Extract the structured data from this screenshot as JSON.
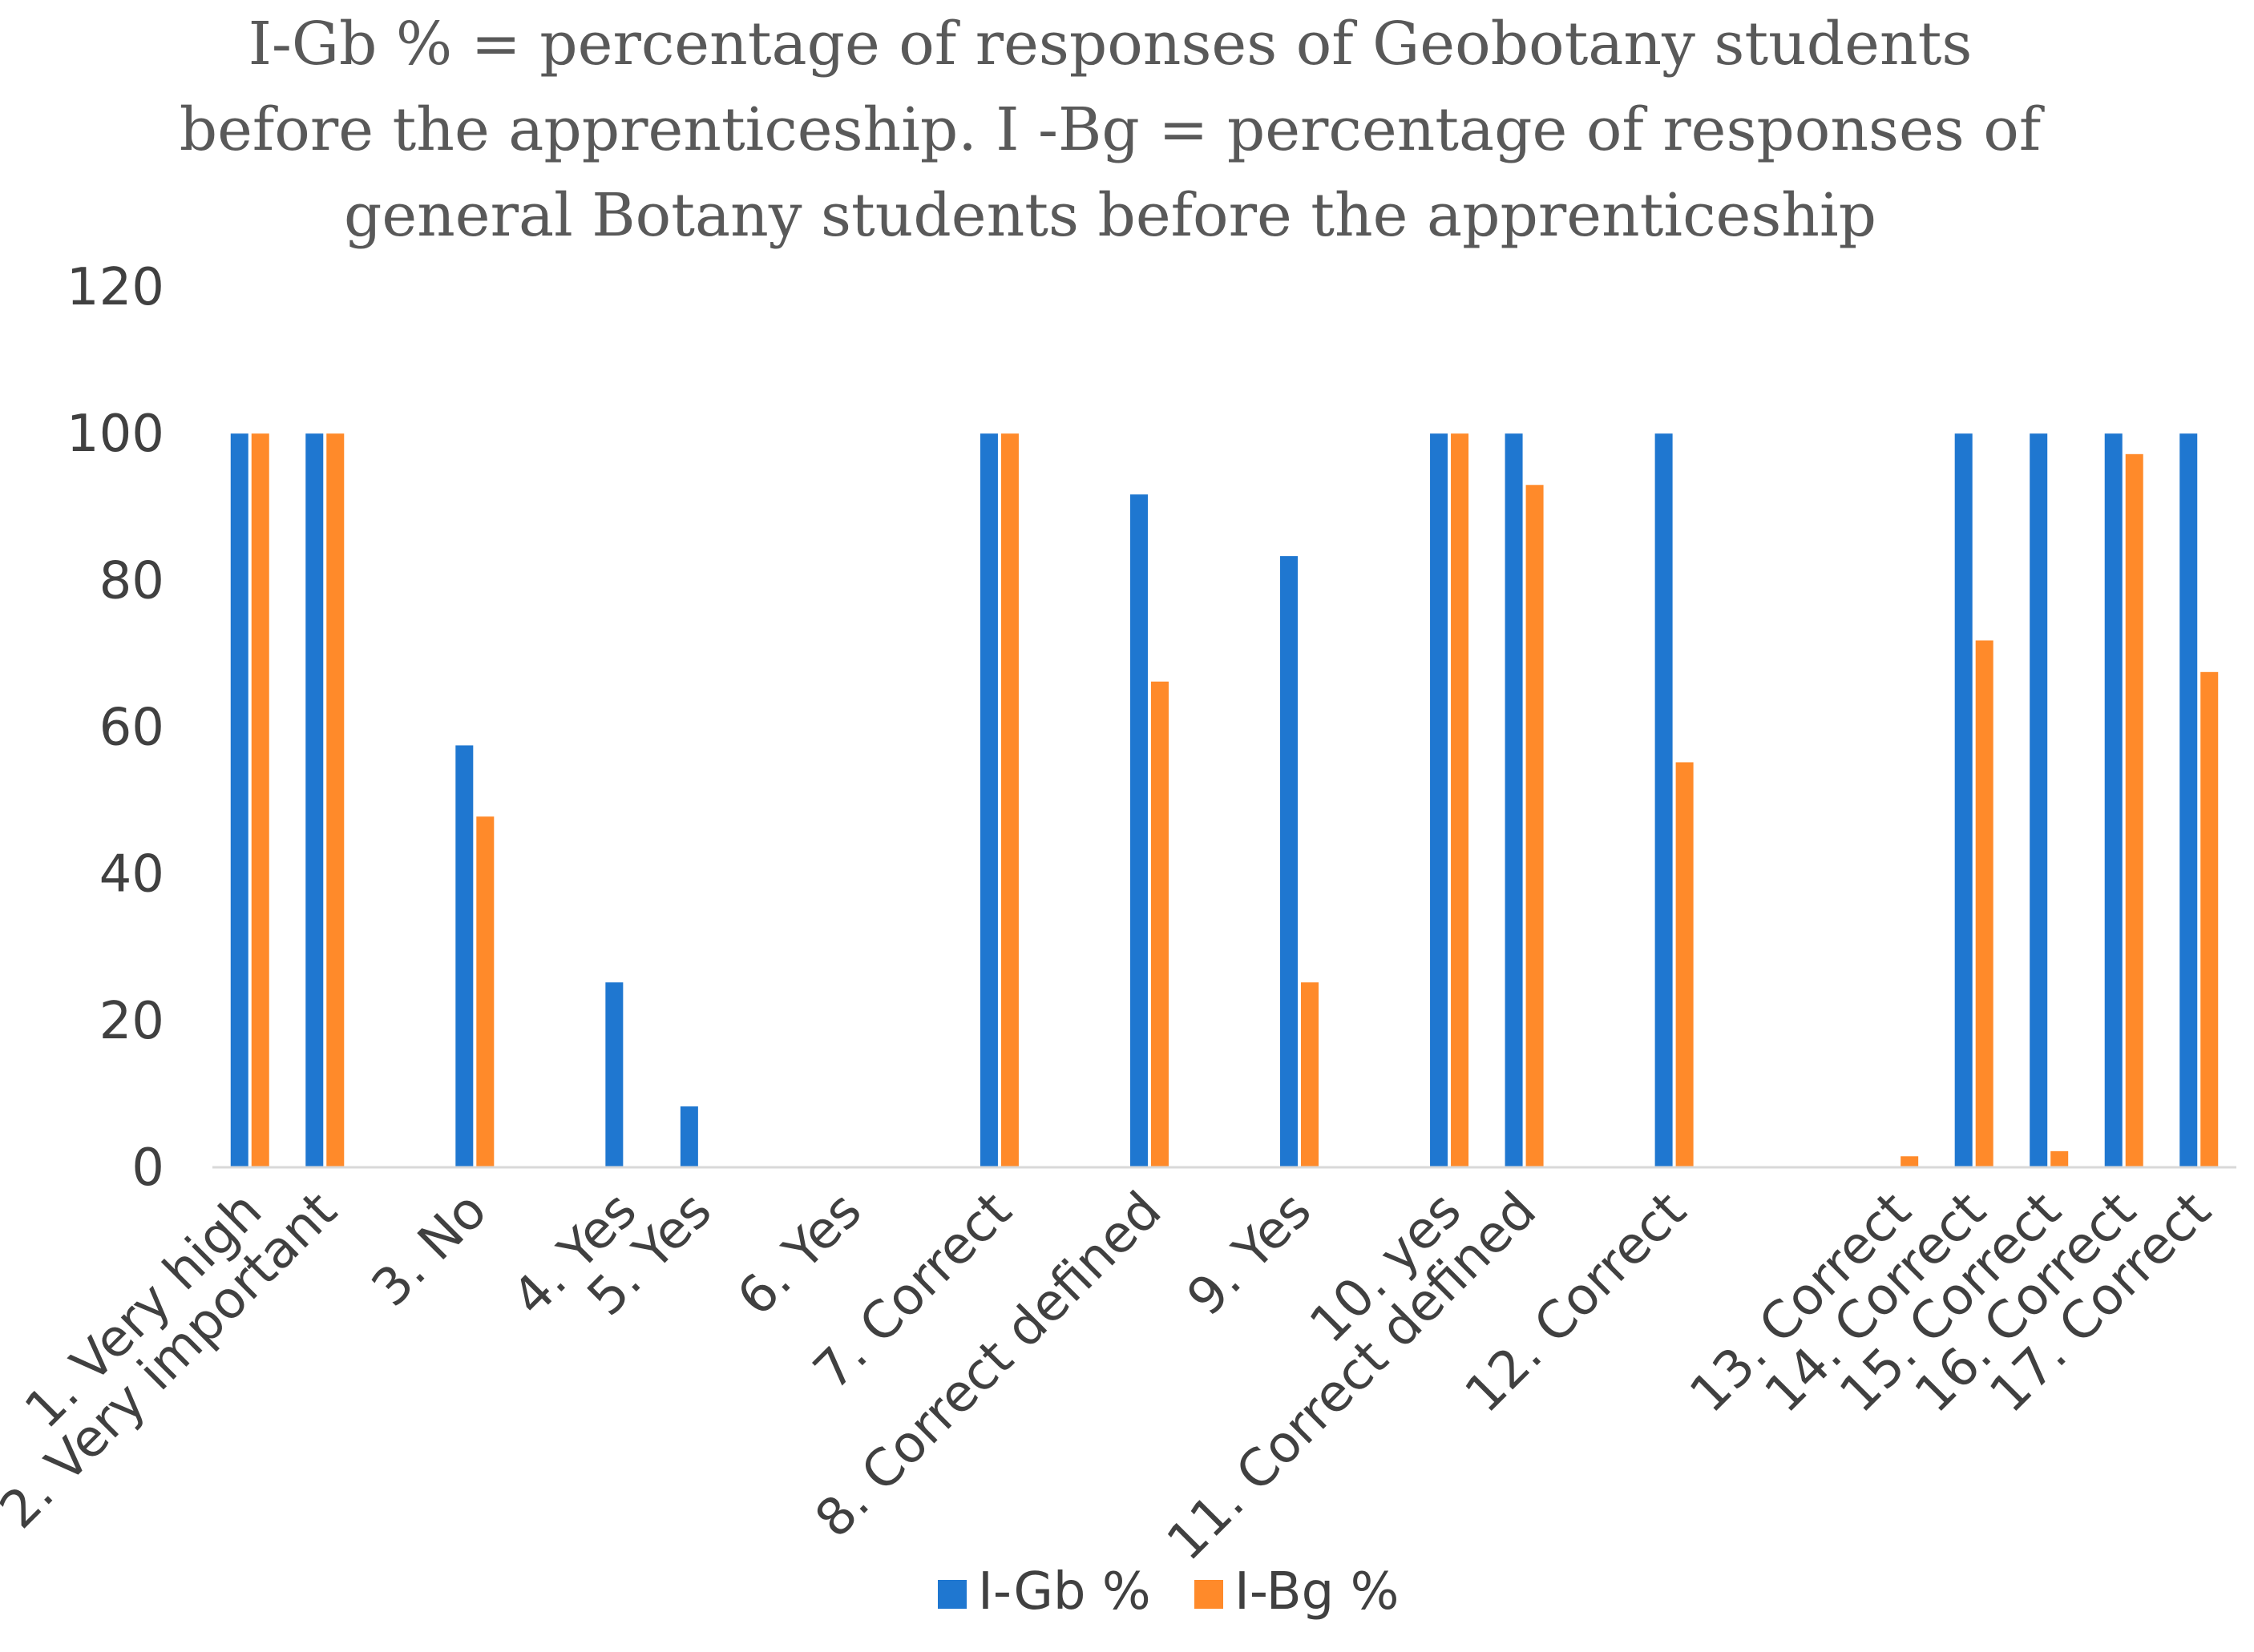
{
  "chart_data": {
    "type": "bar",
    "title_lines": [
      "I-Gb % = percentage of responses of Geobotany students",
      "before the apprenticeship. I -Bg = percentage of responses of",
      "general Botany students before the apprenticeship"
    ],
    "categories": [
      "1. Very high",
      "2. Very important",
      "",
      "3. No",
      "",
      "4. Yes",
      "5. Yes",
      "",
      "6. Yes",
      "",
      "7. Correct",
      "",
      "8. Correct defined",
      "",
      "9. Yes",
      "",
      "10. yes",
      "11. Correct defined",
      "",
      "12. Correct",
      "",
      "",
      "13. Correct",
      "14. Correct",
      "15. Correct",
      "16. Correct",
      "17. Correct"
    ],
    "series": [
      {
        "name": "I-Gb %",
        "color": "#1F77D0",
        "values": [
          100,
          100,
          0,
          57.5,
          0,
          25.2,
          8.3,
          0,
          0,
          0,
          100,
          0,
          91.7,
          0,
          83.3,
          0,
          100,
          100,
          0,
          100,
          0,
          0,
          0,
          100,
          100,
          100,
          100
        ]
      },
      {
        "name": "I-Bg %",
        "color": "#FF8A2A",
        "values": [
          100,
          100,
          0,
          47.8,
          0,
          0,
          0,
          0,
          0,
          0,
          100,
          0,
          66.2,
          0,
          25.2,
          0,
          100,
          93,
          0,
          55.2,
          0,
          0,
          1.5,
          71.8,
          2.2,
          97.2,
          67.5
        ]
      }
    ],
    "y_ticks": [
      "0",
      "20",
      "40",
      "60",
      "80",
      "100",
      "120"
    ],
    "ylim": [
      0,
      120
    ],
    "legend_position": "bottom",
    "xlabel": "",
    "ylabel": ""
  }
}
